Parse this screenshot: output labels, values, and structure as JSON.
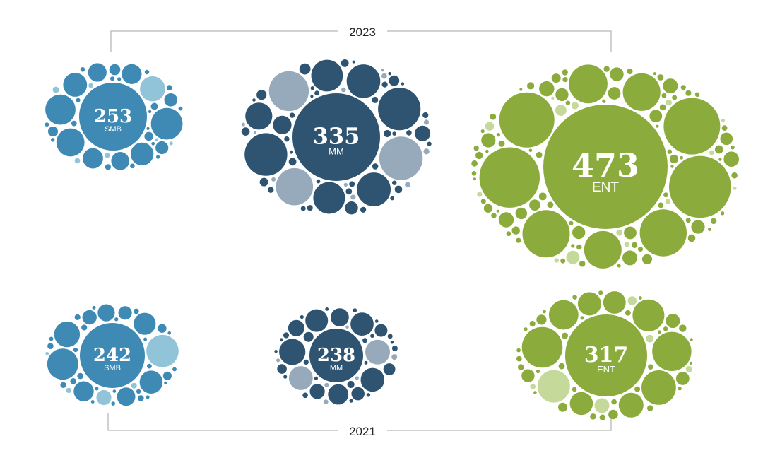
{
  "chart_data": {
    "type": "packed-bubble",
    "title": "",
    "years": [
      "2023",
      "2021"
    ],
    "segments": [
      "SMB",
      "MM",
      "ENT"
    ],
    "series": [
      {
        "year": "2023",
        "segment": "SMB",
        "value": 253,
        "value_label": "253",
        "segment_label": "SMB"
      },
      {
        "year": "2023",
        "segment": "MM",
        "value": 335,
        "value_label": "335",
        "segment_label": "MM"
      },
      {
        "year": "2023",
        "segment": "ENT",
        "value": 473,
        "value_label": "473",
        "segment_label": "ENT"
      },
      {
        "year": "2021",
        "segment": "SMB",
        "value": 242,
        "value_label": "242",
        "segment_label": "SMB"
      },
      {
        "year": "2021",
        "segment": "MM",
        "value": 238,
        "value_label": "238",
        "segment_label": "MM"
      },
      {
        "year": "2021",
        "segment": "ENT",
        "value": 317,
        "value_label": "317",
        "segment_label": "ENT"
      }
    ],
    "colors": {
      "SMB": {
        "primary": "#3f8ab4",
        "light": "#92c4d9"
      },
      "MM": {
        "primary": "#2e5471",
        "light": "#97aabc"
      },
      "ENT": {
        "primary": "#8bab3c",
        "light": "#c5d99a"
      },
      "bracket": "#b8b8b8",
      "text": "#222222"
    }
  },
  "brackets": {
    "top_label": "2023",
    "bottom_label": "2021"
  }
}
